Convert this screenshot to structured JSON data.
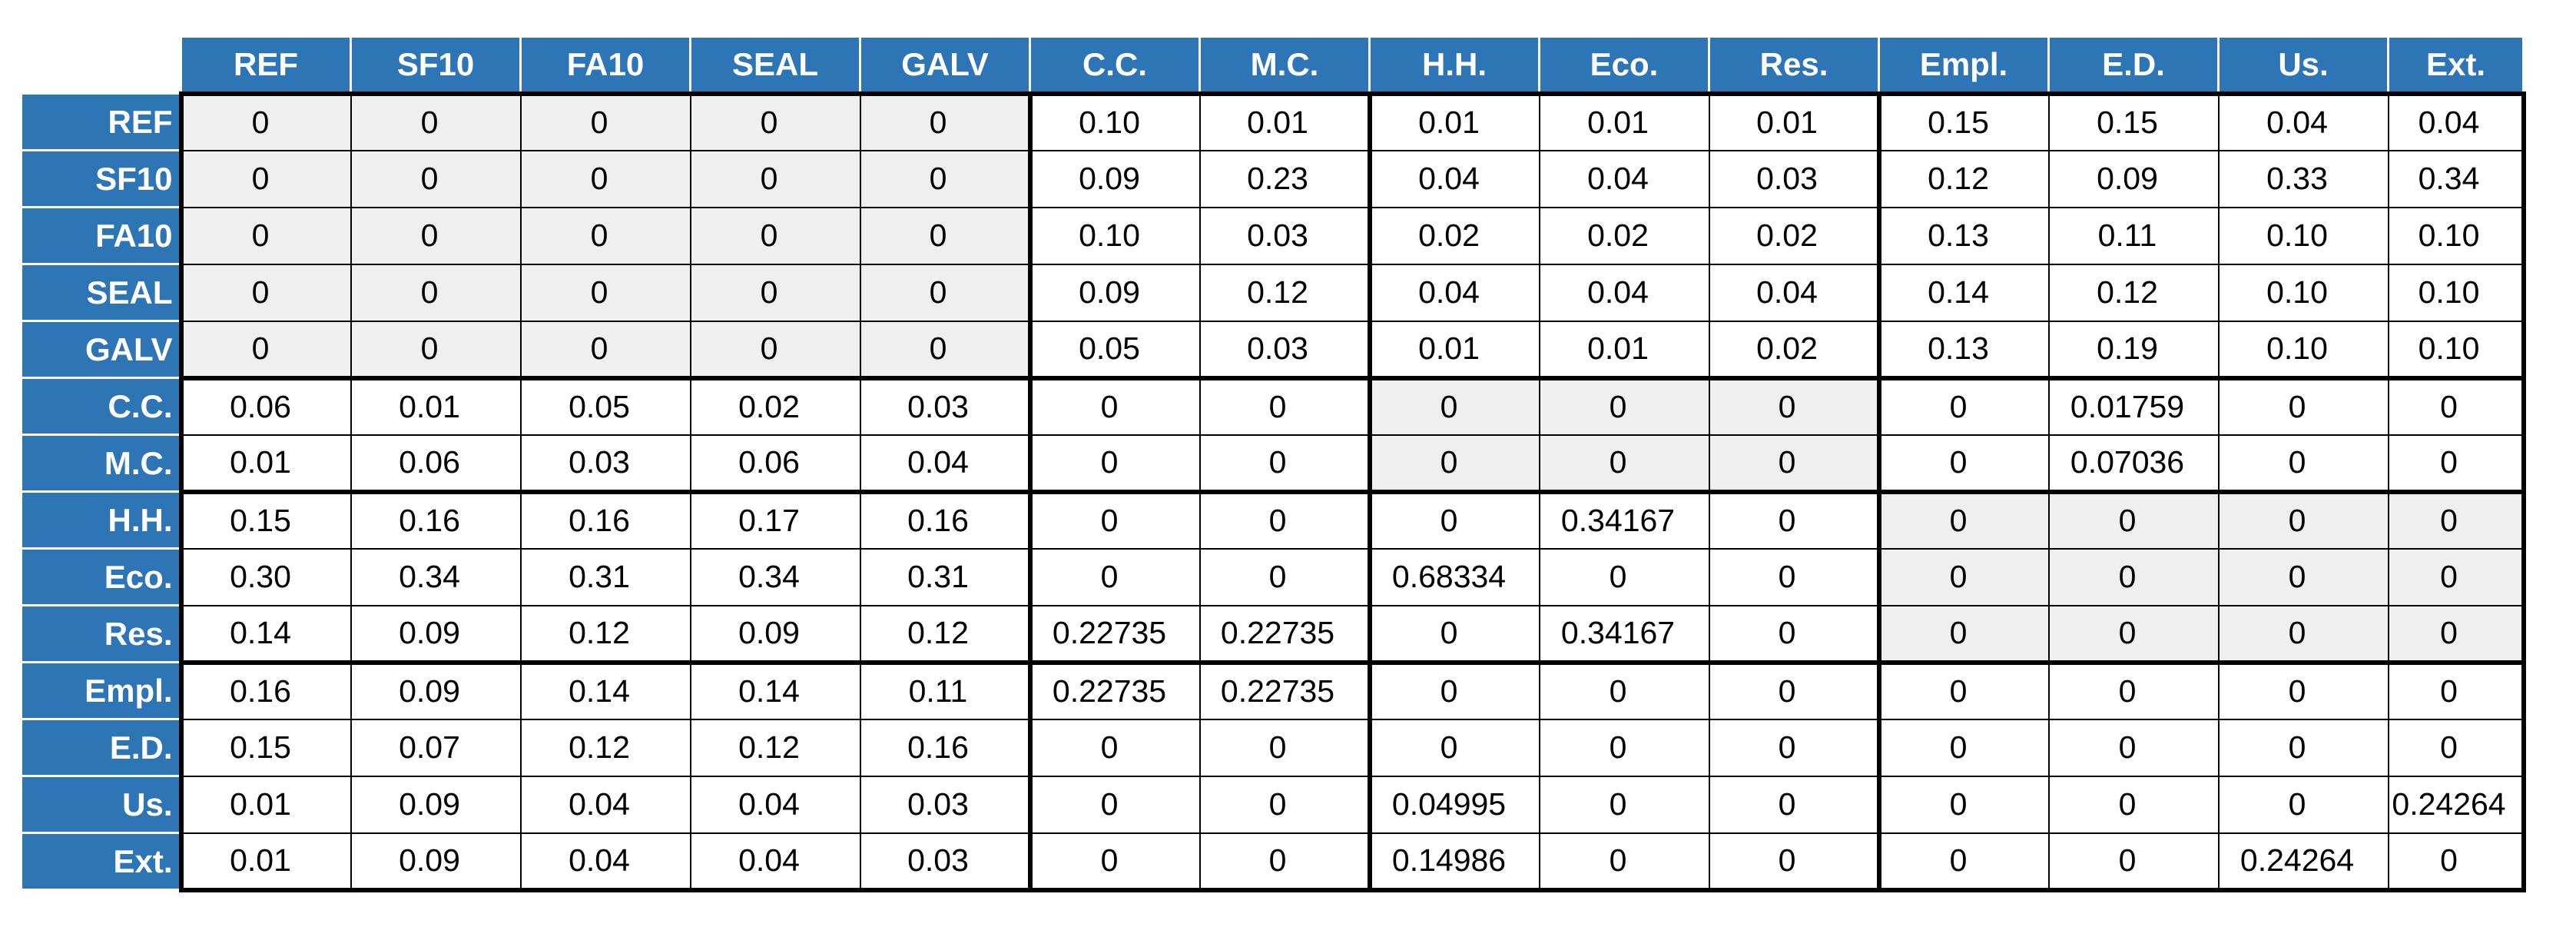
{
  "colors": {
    "header_fill": "#2e75b6",
    "header_text": "#ffffff",
    "shaded_cell": "#efefef",
    "grid_line": "#000000"
  },
  "chart_data": {
    "type": "table",
    "columns": [
      "REF",
      "SF10",
      "FA10",
      "SEAL",
      "GALV",
      "C.C.",
      "M.C.",
      "H.H.",
      "Eco.",
      "Res.",
      "Empl.",
      "E.D.",
      "Us.",
      "Ext."
    ],
    "rows": [
      {
        "label": "REF",
        "values": [
          "0",
          "0",
          "0",
          "0",
          "0",
          "0.10",
          "0.01",
          "0.01",
          "0.01",
          "0.01",
          "0.15",
          "0.15",
          "0.04",
          "0.04"
        ]
      },
      {
        "label": "SF10",
        "values": [
          "0",
          "0",
          "0",
          "0",
          "0",
          "0.09",
          "0.23",
          "0.04",
          "0.04",
          "0.03",
          "0.12",
          "0.09",
          "0.33",
          "0.34"
        ]
      },
      {
        "label": "FA10",
        "values": [
          "0",
          "0",
          "0",
          "0",
          "0",
          "0.10",
          "0.03",
          "0.02",
          "0.02",
          "0.02",
          "0.13",
          "0.11",
          "0.10",
          "0.10"
        ]
      },
      {
        "label": "SEAL",
        "values": [
          "0",
          "0",
          "0",
          "0",
          "0",
          "0.09",
          "0.12",
          "0.04",
          "0.04",
          "0.04",
          "0.14",
          "0.12",
          "0.10",
          "0.10"
        ]
      },
      {
        "label": "GALV",
        "values": [
          "0",
          "0",
          "0",
          "0",
          "0",
          "0.05",
          "0.03",
          "0.01",
          "0.01",
          "0.02",
          "0.13",
          "0.19",
          "0.10",
          "0.10"
        ]
      },
      {
        "label": "C.C.",
        "values": [
          "0.06",
          "0.01",
          "0.05",
          "0.02",
          "0.03",
          "0",
          "0",
          "0",
          "0",
          "0",
          "0",
          "0.01759",
          "0",
          "0"
        ]
      },
      {
        "label": "M.C.",
        "values": [
          "0.01",
          "0.06",
          "0.03",
          "0.06",
          "0.04",
          "0",
          "0",
          "0",
          "0",
          "0",
          "0",
          "0.07036",
          "0",
          "0"
        ]
      },
      {
        "label": "H.H.",
        "values": [
          "0.15",
          "0.16",
          "0.16",
          "0.17",
          "0.16",
          "0",
          "0",
          "0",
          "0.34167",
          "0",
          "0",
          "0",
          "0",
          "0"
        ]
      },
      {
        "label": "Eco.",
        "values": [
          "0.30",
          "0.34",
          "0.31",
          "0.34",
          "0.31",
          "0",
          "0",
          "0.68334",
          "0",
          "0",
          "0",
          "0",
          "0",
          "0"
        ]
      },
      {
        "label": "Res.",
        "values": [
          "0.14",
          "0.09",
          "0.12",
          "0.09",
          "0.12",
          "0.22735",
          "0.22735",
          "0",
          "0.34167",
          "0",
          "0",
          "0",
          "0",
          "0"
        ]
      },
      {
        "label": "Empl.",
        "values": [
          "0.16",
          "0.09",
          "0.14",
          "0.14",
          "0.11",
          "0.22735",
          "0.22735",
          "0",
          "0",
          "0",
          "0",
          "0",
          "0",
          "0"
        ]
      },
      {
        "label": "E.D.",
        "values": [
          "0.15",
          "0.07",
          "0.12",
          "0.12",
          "0.16",
          "0",
          "0",
          "0",
          "0",
          "0",
          "0",
          "0",
          "0",
          "0"
        ]
      },
      {
        "label": "Us.",
        "values": [
          "0.01",
          "0.09",
          "0.04",
          "0.04",
          "0.03",
          "0",
          "0",
          "0.04995",
          "0",
          "0",
          "0",
          "0",
          "0",
          "0.24264"
        ]
      },
      {
        "label": "Ext.",
        "values": [
          "0.01",
          "0.09",
          "0.04",
          "0.04",
          "0.03",
          "0",
          "0",
          "0.14986",
          "0",
          "0",
          "0",
          "0",
          "0.24264",
          "0"
        ]
      }
    ],
    "groups": [
      {
        "start": 0,
        "end": 4
      },
      {
        "start": 5,
        "end": 6
      },
      {
        "start": 7,
        "end": 9
      },
      {
        "start": 10,
        "end": 13
      }
    ],
    "shaded_blocks": [
      {
        "rows": [
          0,
          4
        ],
        "cols": [
          0,
          4
        ]
      },
      {
        "rows": [
          5,
          6
        ],
        "cols": [
          7,
          9
        ]
      },
      {
        "rows": [
          7,
          9
        ],
        "cols": [
          10,
          13
        ]
      }
    ]
  }
}
